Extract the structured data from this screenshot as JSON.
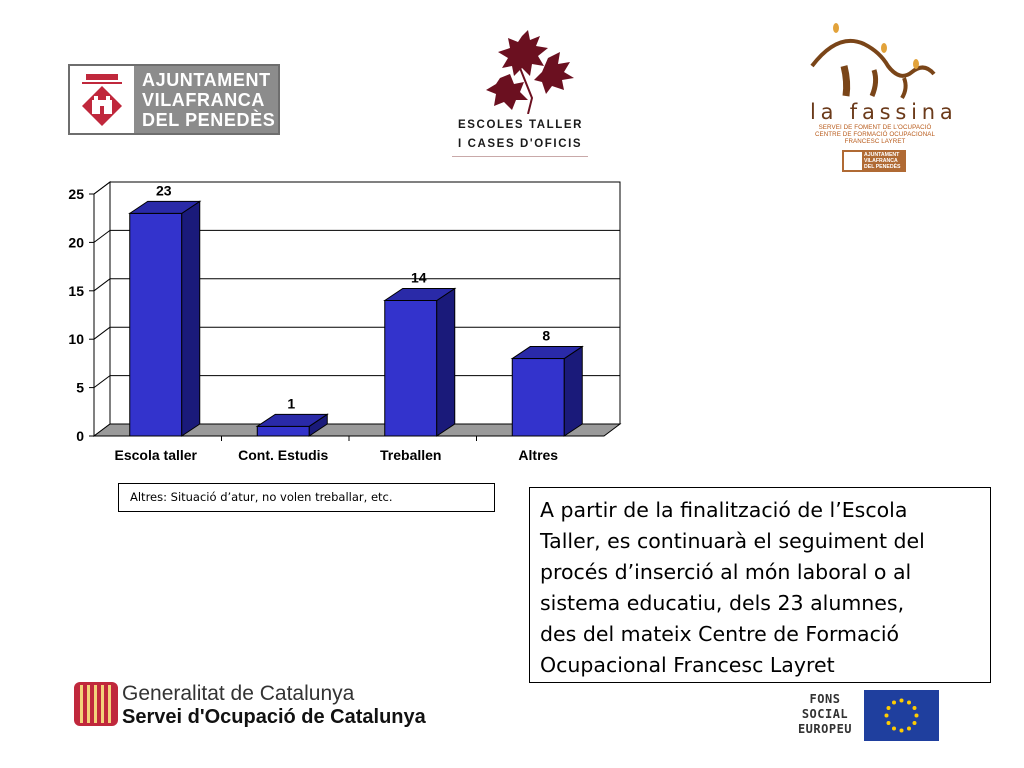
{
  "logos": {
    "ajuntament": {
      "lines": [
        "AJUNTAMENT",
        "VILAFRANCA",
        "DEL PENEDÈS"
      ]
    },
    "escoles": {
      "line1": "ESCOLES TALLER",
      "line2": "I CASES D'OFICIS"
    },
    "fassina": {
      "title": "la fassina",
      "sub": [
        "SERVEI DE FOMENT DE L'OCUPACIÓ",
        "CENTRE DE FORMACIÓ OCUPACIONAL",
        "FRANCESC LAYRET"
      ],
      "mini": [
        "AJUNTAMENT",
        "VILAFRANCA",
        "DEL PENEDÈS"
      ]
    },
    "generalitat": {
      "line1": "Generalitat de Catalunya",
      "line2": "Servei d'Ocupació de Catalunya"
    },
    "fse": {
      "lines": [
        "FONS",
        "SOCIAL",
        "EUROPEU"
      ]
    }
  },
  "colors": {
    "bar_front": "#3333cc",
    "bar_side": "#1a1a7a",
    "bar_top": "#2a2aa8",
    "floor": "#9a9a9a",
    "logo_grey": "#8c8c8c",
    "logo_red": "#c0283c",
    "fassina_brown": "#6b3a1a",
    "eu_blue": "#1f3f9e",
    "eu_star": "#ffcc00"
  },
  "chart_data": {
    "type": "bar",
    "categories": [
      "Escola taller",
      "Cont. Estudis",
      "Treballen",
      "Altres"
    ],
    "values": [
      23,
      1,
      14,
      8
    ],
    "ylim": [
      0,
      25
    ],
    "yticks": [
      0,
      5,
      10,
      15,
      20,
      25
    ],
    "grid": true,
    "style": "3d"
  },
  "note": "Altres: Situació d’atur, no volen treballar, etc.",
  "text_lines": [
    "A partir de la finalització de l’Escola",
    "Taller, es continuarà el seguiment del",
    "procés d’inserció al món laboral o al",
    "sistema educatiu, dels 23 alumnes,",
    "des del mateix Centre de Formació",
    "Ocupacional Francesc Layret"
  ]
}
